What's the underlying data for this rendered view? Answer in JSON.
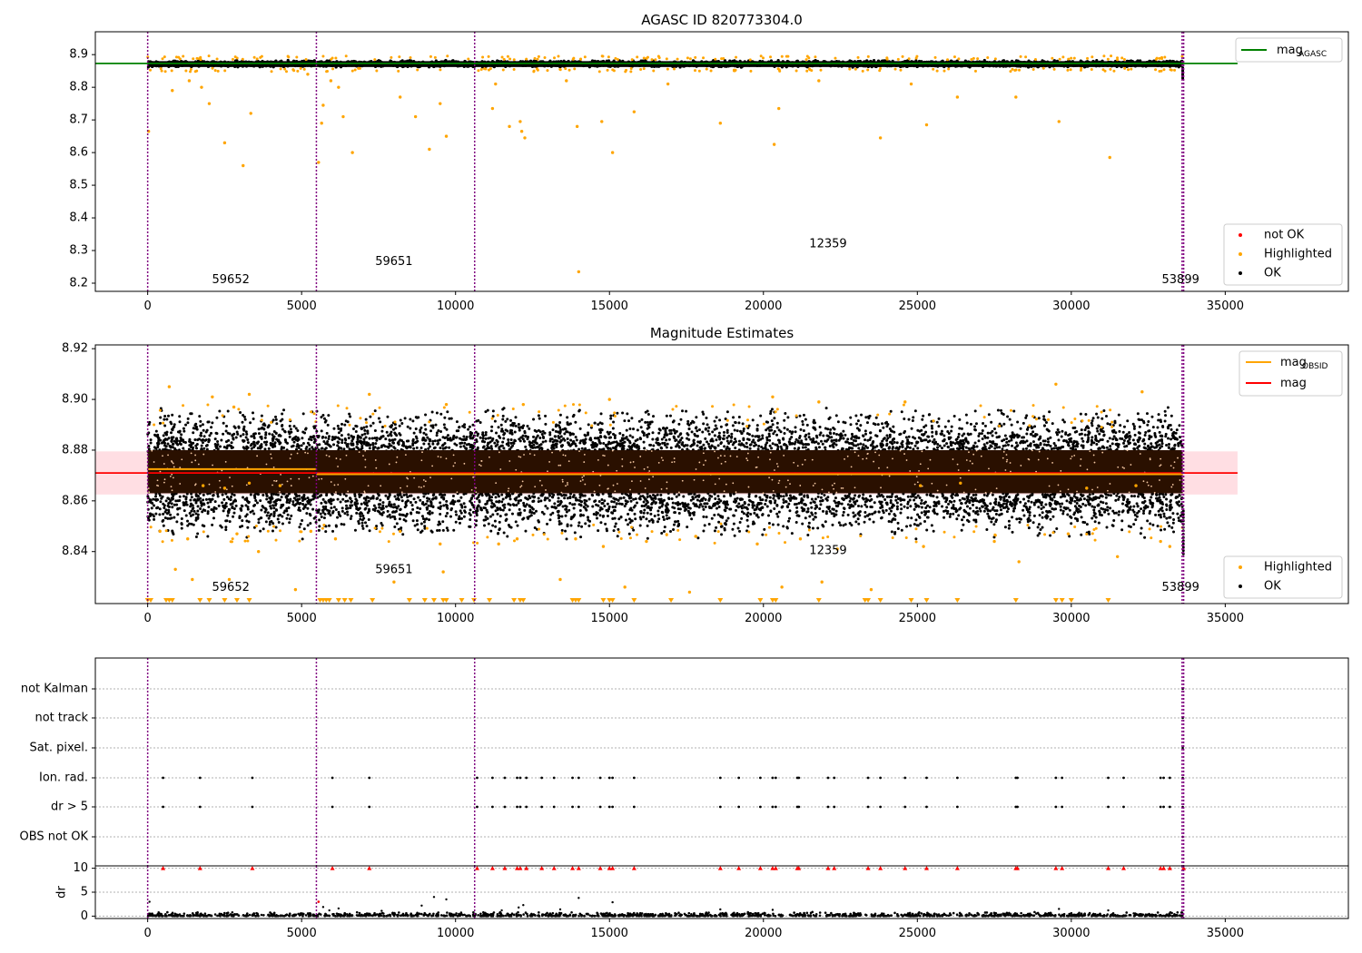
{
  "figure": {
    "width_label": "",
    "sub": ""
  },
  "chart_data": [
    {
      "id": "top",
      "type": "scatter",
      "title": "AGASC ID 820773304.0",
      "xlabel": "",
      "ylabel": "",
      "xlim": [
        -1700,
        39000
      ],
      "ylim": [
        8.175,
        8.97
      ],
      "xticks": [
        0,
        5000,
        10000,
        15000,
        20000,
        25000,
        30000,
        35000
      ],
      "xtick_labels": [
        "0",
        "5000",
        "10000",
        "15000",
        "20000",
        "25000",
        "30000",
        "35000"
      ],
      "yticks": [
        8.2,
        8.3,
        8.4,
        8.5,
        8.6,
        8.7,
        8.8,
        8.9
      ],
      "ytick_labels": [
        "8.2",
        "8.3",
        "8.4",
        "8.5",
        "8.6",
        "8.7",
        "8.8",
        "8.9"
      ],
      "grid": false,
      "vlines": [
        0,
        5480,
        10620,
        33600,
        33650
      ],
      "hline": {
        "name": "mag",
        "sub": "AGASC",
        "y": 8.873,
        "color": "#008000",
        "x_range": [
          -1700,
          35400
        ]
      },
      "ok_band": {
        "x_range": [
          0,
          33620
        ],
        "y_range": [
          8.852,
          8.892
        ]
      },
      "highlighted": [
        [
          30,
          8.665
        ],
        [
          800,
          8.79
        ],
        [
          1350,
          8.82
        ],
        [
          1750,
          8.8
        ],
        [
          2000,
          8.75
        ],
        [
          2500,
          8.63
        ],
        [
          3100,
          8.56
        ],
        [
          3350,
          8.72
        ],
        [
          5200,
          8.84
        ],
        [
          5550,
          8.57
        ],
        [
          5650,
          8.69
        ],
        [
          5700,
          8.745
        ],
        [
          5950,
          8.82
        ],
        [
          6200,
          8.8
        ],
        [
          6350,
          8.71
        ],
        [
          6650,
          8.6
        ],
        [
          8200,
          8.77
        ],
        [
          8700,
          8.71
        ],
        [
          9150,
          8.61
        ],
        [
          9500,
          8.75
        ],
        [
          9700,
          8.65
        ],
        [
          11200,
          8.735
        ],
        [
          11750,
          8.68
        ],
        [
          12100,
          8.695
        ],
        [
          12150,
          8.665
        ],
        [
          12250,
          8.645
        ],
        [
          13950,
          8.68
        ],
        [
          14750,
          8.695
        ],
        [
          15100,
          8.6
        ],
        [
          15800,
          8.725
        ],
        [
          18600,
          8.69
        ],
        [
          20350,
          8.625
        ],
        [
          20500,
          8.735
        ],
        [
          23800,
          8.645
        ],
        [
          25300,
          8.685
        ],
        [
          28200,
          8.77
        ],
        [
          29600,
          8.695
        ],
        [
          31250,
          8.585
        ],
        [
          14000,
          8.235
        ],
        [
          11300,
          8.81
        ],
        [
          13600,
          8.82
        ],
        [
          16900,
          8.81
        ],
        [
          21800,
          8.82
        ],
        [
          24800,
          8.81
        ],
        [
          26300,
          8.77
        ]
      ],
      "legend_top": {
        "placement": "top-right",
        "entries": [
          {
            "name": "mag",
            "sub": "AGASC",
            "color": "#008000"
          }
        ]
      },
      "legend_bottom": {
        "placement": "lower-right",
        "entries": [
          {
            "name": "not OK",
            "color": "#ff0000"
          },
          {
            "name": "Highlighted",
            "color": "#ffa500"
          },
          {
            "name": "OK",
            "color": "#000000"
          }
        ]
      },
      "annotations": [
        {
          "text": "59652",
          "x": 2700,
          "y": 8.2
        },
        {
          "text": "59651",
          "x": 8000,
          "y": 8.255
        },
        {
          "text": "12359",
          "x": 22100,
          "y": 8.31
        },
        {
          "text": "53899",
          "x": 33550,
          "y": 8.2
        }
      ]
    },
    {
      "id": "middle",
      "type": "scatter",
      "title": "Magnitude Estimates",
      "xlabel": "",
      "ylabel": "",
      "xlim": [
        -1700,
        39000
      ],
      "ylim": [
        8.8195,
        8.9215
      ],
      "xticks": [
        0,
        5000,
        10000,
        15000,
        20000,
        25000,
        30000,
        35000
      ],
      "xtick_labels": [
        "0",
        "5000",
        "10000",
        "15000",
        "20000",
        "25000",
        "30000",
        "35000"
      ],
      "yticks": [
        8.84,
        8.86,
        8.88,
        8.9,
        8.92
      ],
      "ytick_labels": [
        "8.84",
        "8.86",
        "8.88",
        "8.90",
        "8.92"
      ],
      "grid": false,
      "vlines": [
        0,
        5480,
        10620,
        33600,
        33650
      ],
      "mag_line": {
        "name": "mag",
        "y": 8.871,
        "color": "#ff0000",
        "x_range": [
          -1700,
          35400
        ],
        "band": [
          8.8625,
          8.8795
        ]
      },
      "obsid_mags": [
        {
          "x_range": [
            0,
            5480
          ],
          "y": 8.8725
        },
        {
          "x_range": [
            5480,
            10620
          ],
          "y": 8.8705
        },
        {
          "x_range": [
            10620,
            33620
          ],
          "y": 8.8705
        }
      ],
      "ok_band": {
        "x_range": [
          0,
          33620
        ],
        "y_range": [
          8.849,
          8.893
        ]
      },
      "dense_band": {
        "x_range": [
          0,
          33620
        ],
        "y_range": [
          8.863,
          8.88
        ]
      },
      "highlighted": [
        [
          700,
          8.905
        ],
        [
          2100,
          8.901
        ],
        [
          3300,
          8.902
        ],
        [
          2800,
          8.897
        ],
        [
          7200,
          8.902
        ],
        [
          9700,
          8.898
        ],
        [
          12200,
          8.898
        ],
        [
          15000,
          8.9
        ],
        [
          20300,
          8.901
        ],
        [
          21800,
          8.899
        ],
        [
          24600,
          8.899
        ],
        [
          29500,
          8.906
        ],
        [
          32300,
          8.903
        ],
        [
          400,
          8.848
        ],
        [
          1300,
          8.845
        ],
        [
          2900,
          8.847
        ],
        [
          3600,
          8.84
        ],
        [
          5300,
          8.848
        ],
        [
          6100,
          8.845
        ],
        [
          8200,
          8.848
        ],
        [
          9500,
          8.843
        ],
        [
          11400,
          8.843
        ],
        [
          12000,
          8.845
        ],
        [
          13900,
          8.845
        ],
        [
          14800,
          8.842
        ],
        [
          16200,
          8.844
        ],
        [
          17800,
          8.846
        ],
        [
          19800,
          8.843
        ],
        [
          21200,
          8.845
        ],
        [
          22400,
          8.841
        ],
        [
          25200,
          8.842
        ],
        [
          27500,
          8.844
        ],
        [
          28300,
          8.836
        ],
        [
          29900,
          8.847
        ],
        [
          31500,
          8.838
        ],
        [
          32900,
          8.844
        ],
        [
          33200,
          8.842
        ],
        [
          900,
          8.833
        ],
        [
          1450,
          8.829
        ],
        [
          2650,
          8.829
        ],
        [
          4800,
          8.825
        ],
        [
          8000,
          8.828
        ],
        [
          9600,
          8.832
        ],
        [
          13400,
          8.829
        ],
        [
          15500,
          8.826
        ],
        [
          17600,
          8.824
        ],
        [
          20600,
          8.826
        ],
        [
          21900,
          8.828
        ],
        [
          23500,
          8.825
        ],
        [
          2500,
          8.865
        ],
        [
          3300,
          8.867
        ],
        [
          1800,
          8.866
        ],
        [
          4300,
          8.866
        ],
        [
          25100,
          8.866
        ],
        [
          26400,
          8.867
        ],
        [
          30500,
          8.865
        ],
        [
          32100,
          8.866
        ]
      ],
      "low_markers_x": [
        0,
        100,
        600,
        700,
        800,
        1700,
        2000,
        2500,
        2900,
        3300,
        5600,
        5700,
        5800,
        5900,
        6200,
        6400,
        6600,
        7300,
        8500,
        9000,
        9300,
        9600,
        9700,
        10200,
        10600,
        11100,
        11900,
        12100,
        12200,
        13800,
        13900,
        14000,
        14800,
        15000,
        15100,
        15800,
        17000,
        18600,
        19900,
        20300,
        20400,
        21800,
        23300,
        23400,
        23800,
        24800,
        25300,
        26300,
        28200,
        29500,
        29700,
        30000,
        31200
      ],
      "legend_top": {
        "placement": "top-right",
        "entries": [
          {
            "name": "mag",
            "sub": "OBSID",
            "color": "#ffa500"
          },
          {
            "name": "mag",
            "sub": "",
            "color": "#ff0000"
          }
        ]
      },
      "legend_bottom": {
        "placement": "lower-right",
        "entries": [
          {
            "name": "Highlighted",
            "color": "#ffa500"
          },
          {
            "name": "OK",
            "color": "#000000"
          }
        ]
      },
      "annotations": [
        {
          "text": "59652",
          "x": 2700,
          "y": 8.8245
        },
        {
          "text": "59651",
          "x": 8000,
          "y": 8.8315
        },
        {
          "text": "12359",
          "x": 22100,
          "y": 8.839
        },
        {
          "text": "53899",
          "x": 33550,
          "y": 8.8245
        }
      ]
    },
    {
      "id": "flags",
      "type": "scatter",
      "title": "",
      "xlim": [
        -1700,
        39000
      ],
      "categories": [
        "not Kalman",
        "not track",
        "Sat. pixel.",
        "Ion. rad.",
        "dr > 5",
        "OBS not OK"
      ],
      "grid": true,
      "vlines": [
        0,
        5480,
        10620,
        33600,
        33650
      ],
      "ion_rad_x": [
        500,
        1700,
        3400,
        6000,
        7200,
        10700,
        11200,
        11600,
        12000,
        12100,
        12300,
        12800,
        13200,
        13800,
        14000,
        14700,
        15000,
        15100,
        15800,
        18600,
        19200,
        19900,
        20300,
        20400,
        21100,
        21150,
        22100,
        22300,
        23400,
        23800,
        24600,
        25300,
        26300,
        28200,
        28250,
        29500,
        29700,
        31200,
        31700,
        32900,
        33000,
        33200
      ],
      "dr_gt5_x": [
        500,
        1700,
        3400,
        6000,
        7200,
        10700,
        11200,
        11600,
        12000,
        12100,
        12300,
        12800,
        13200,
        13800,
        14000,
        14700,
        15000,
        15100,
        15800,
        18600,
        19200,
        19900,
        20300,
        20400,
        21100,
        21150,
        22100,
        22300,
        23400,
        23800,
        24600,
        25300,
        26300,
        28200,
        28250,
        29500,
        29700,
        31200,
        31700,
        32900,
        33000,
        33200
      ],
      "end_x": 33620
    },
    {
      "id": "dr",
      "type": "scatter",
      "title": "",
      "ylabel": "dr",
      "xlim": [
        -1700,
        39000
      ],
      "ylim": [
        -0.5,
        10.5
      ],
      "xticks": [
        0,
        5000,
        10000,
        15000,
        20000,
        25000,
        30000,
        35000
      ],
      "xtick_labels": [
        "0",
        "5000",
        "10000",
        "15000",
        "20000",
        "25000",
        "30000",
        "35000"
      ],
      "yticks": [
        0,
        5,
        10
      ],
      "ytick_labels": [
        "0",
        "5",
        "10"
      ],
      "grid": true,
      "vlines": [
        0,
        5480,
        10620,
        33600,
        33650
      ],
      "clipped_x": [
        500,
        1700,
        3400,
        6000,
        7200,
        10700,
        11200,
        11600,
        12000,
        12100,
        12300,
        12800,
        13200,
        13800,
        14000,
        14700,
        15000,
        15100,
        15800,
        18600,
        19200,
        19900,
        20300,
        20400,
        21100,
        21150,
        22100,
        22300,
        23400,
        23800,
        24600,
        25300,
        26300,
        28200,
        28250,
        29500,
        29700,
        31200,
        31700,
        32900,
        33000,
        33200,
        33650
      ],
      "scatter_points": [
        [
          60,
          3.0
        ],
        [
          5550,
          3.0
        ],
        [
          9300,
          4.0
        ],
        [
          9700,
          3.5
        ],
        [
          14000,
          3.8
        ],
        [
          15100,
          2.9
        ],
        [
          12200,
          2.3
        ],
        [
          6200,
          1.6
        ],
        [
          8900,
          2.2
        ],
        [
          5900,
          1.2
        ],
        [
          20300,
          1.3
        ],
        [
          29600,
          1.5
        ],
        [
          31200,
          1.2
        ],
        [
          18600,
          1.4
        ],
        [
          12050,
          1.8
        ],
        [
          7600,
          1.1
        ],
        [
          5700,
          1.9
        ],
        [
          11500,
          1.2
        ],
        [
          13400,
          1.4
        ]
      ]
    }
  ]
}
